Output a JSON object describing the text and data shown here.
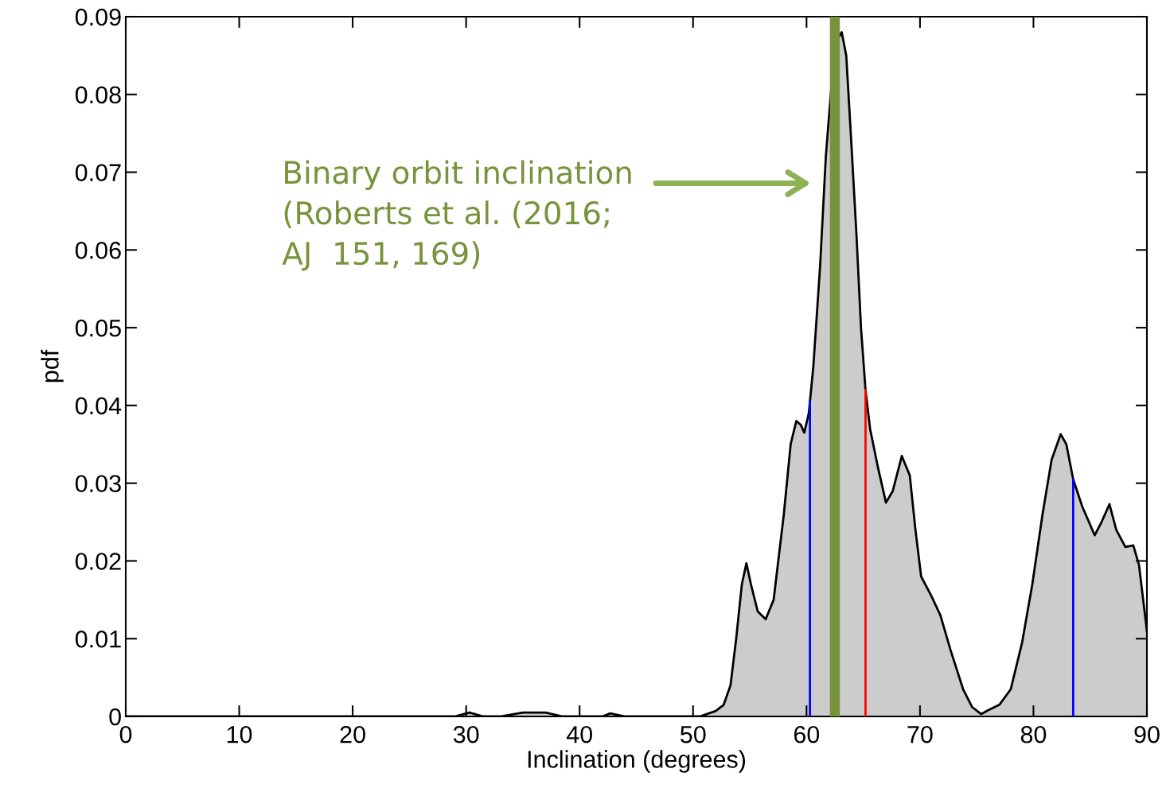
{
  "chart_data": {
    "type": "area",
    "xlabel": "Inclination (degrees)",
    "ylabel": "pdf",
    "x": [
      0,
      29,
      30.3,
      31.5,
      33,
      35,
      37,
      38.5,
      42,
      42.7,
      44,
      50,
      50.6,
      52.0,
      52.7,
      53.3,
      53.8,
      54.3,
      54.7,
      55.1,
      55.7,
      56.4,
      57.1,
      58.0,
      58.6,
      59.1,
      59.5,
      59.8,
      60.2,
      60.6,
      61.2,
      61.7,
      62.3,
      62.7,
      63.1,
      63.5,
      63.9,
      64.4,
      64.8,
      65.2,
      65.6,
      66.3,
      67.0,
      67.6,
      68.4,
      69.1,
      69.6,
      70.1,
      71.0,
      71.8,
      72.7,
      73.8,
      74.6,
      75.4,
      76.0,
      77.0,
      78.0,
      79.0,
      79.9,
      80.8,
      81.6,
      82.4,
      82.9,
      83.5,
      84.3,
      85.4,
      86.0,
      86.7,
      87.3,
      88.1,
      88.8,
      89.3,
      90
    ],
    "series": [
      {
        "color": "#000000",
        "values": [
          0,
          0,
          0.0005,
          0,
          0,
          0.0005,
          0.0005,
          0,
          0,
          0.0004,
          0,
          0,
          0,
          0.0007,
          0.0015,
          0.004,
          0.01,
          0.017,
          0.0197,
          0.017,
          0.0135,
          0.0125,
          0.015,
          0.026,
          0.035,
          0.038,
          0.0375,
          0.0365,
          0.039,
          0.045,
          0.058,
          0.072,
          0.083,
          0.087,
          0.088,
          0.085,
          0.075,
          0.062,
          0.05,
          0.042,
          0.037,
          0.032,
          0.0275,
          0.029,
          0.0335,
          0.031,
          0.024,
          0.018,
          0.0155,
          0.013,
          0.0085,
          0.0035,
          0.0012,
          0.0003,
          0.0008,
          0.0015,
          0.0035,
          0.0095,
          0.017,
          0.026,
          0.033,
          0.0363,
          0.035,
          0.0305,
          0.027,
          0.0233,
          0.025,
          0.0273,
          0.024,
          0.0218,
          0.022,
          0.0195,
          0.011
        ]
      }
    ],
    "xlim": [
      0,
      90
    ],
    "xticks": [
      0,
      10,
      20,
      30,
      40,
      50,
      60,
      70,
      80,
      90
    ],
    "ylim": [
      0,
      0.09
    ],
    "yticks": [
      0,
      0.01,
      0.02,
      0.03,
      0.04,
      0.05,
      0.06,
      0.07,
      0.08,
      0.09
    ],
    "ref_lines": [
      {
        "axis": "x",
        "value": 60.3,
        "color": "#0000ff"
      },
      {
        "axis": "x",
        "value": 65.2,
        "color": "#ff0000"
      },
      {
        "axis": "x",
        "value": 83.5,
        "color": "#0000ff"
      },
      {
        "axis": "x",
        "value": 62.5,
        "color": "#77933c"
      }
    ],
    "annotations": [
      "Binary orbit inclination\n(Roberts et al. (2016;\nAJ  151, 169)"
    ],
    "grid": false,
    "legend": false
  }
}
